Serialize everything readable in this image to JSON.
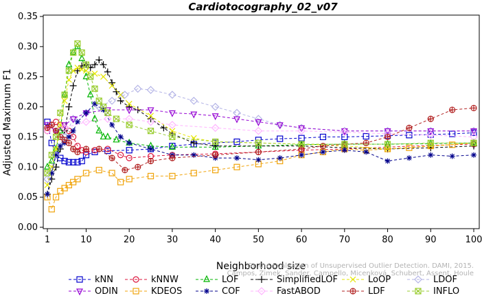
{
  "chart_data": {
    "type": "line",
    "title": "Cardiotocography_02_v07",
    "xlabel": "Neighborhood size",
    "ylabel": "Adjusted Maximum F1",
    "xlim": [
      1,
      100
    ],
    "ylim": [
      0,
      0.35
    ],
    "x_ticks": [
      1,
      10,
      20,
      30,
      40,
      50,
      60,
      70,
      80,
      90,
      100
    ],
    "y_ticks": [
      "0.00",
      "0.05",
      "0.10",
      "0.15",
      "0.20",
      "0.25",
      "0.30",
      "0.35"
    ],
    "grid": false,
    "legend_position": "bottom",
    "series": [
      {
        "name": "kNN",
        "color": "#0000cd",
        "marker": "square",
        "points": [
          [
            1,
            0.175
          ],
          [
            2,
            0.14
          ],
          [
            3,
            0.12
          ],
          [
            4,
            0.115
          ],
          [
            5,
            0.11
          ],
          [
            6,
            0.108
          ],
          [
            7,
            0.108
          ],
          [
            8,
            0.108
          ],
          [
            9,
            0.11
          ],
          [
            10,
            0.12
          ],
          [
            12,
            0.125
          ],
          [
            15,
            0.127
          ],
          [
            20,
            0.128
          ],
          [
            25,
            0.13
          ],
          [
            30,
            0.135
          ],
          [
            35,
            0.138
          ],
          [
            40,
            0.14
          ],
          [
            45,
            0.142
          ],
          [
            50,
            0.145
          ],
          [
            55,
            0.147
          ],
          [
            60,
            0.148
          ],
          [
            65,
            0.15
          ],
          [
            70,
            0.15
          ],
          [
            75,
            0.151
          ],
          [
            80,
            0.152
          ],
          [
            85,
            0.153
          ],
          [
            90,
            0.154
          ],
          [
            95,
            0.155
          ],
          [
            100,
            0.157
          ]
        ]
      },
      {
        "name": "kNNW",
        "color": "#dc143c",
        "marker": "circle",
        "points": [
          [
            1,
            0.16
          ],
          [
            2,
            0.17
          ],
          [
            3,
            0.175
          ],
          [
            4,
            0.17
          ],
          [
            5,
            0.165
          ],
          [
            6,
            0.16
          ],
          [
            7,
            0.15
          ],
          [
            8,
            0.135
          ],
          [
            9,
            0.128
          ],
          [
            10,
            0.125
          ],
          [
            12,
            0.128
          ],
          [
            15,
            0.13
          ],
          [
            18,
            0.12
          ],
          [
            20,
            0.115
          ],
          [
            25,
            0.118
          ],
          [
            30,
            0.12
          ],
          [
            40,
            0.122
          ],
          [
            50,
            0.125
          ],
          [
            60,
            0.128
          ],
          [
            70,
            0.13
          ],
          [
            80,
            0.133
          ],
          [
            90,
            0.136
          ],
          [
            100,
            0.138
          ]
        ]
      },
      {
        "name": "LOF",
        "color": "#00b400",
        "marker": "triangle-up",
        "points": [
          [
            1,
            0.1
          ],
          [
            2,
            0.11
          ],
          [
            3,
            0.13
          ],
          [
            4,
            0.16
          ],
          [
            5,
            0.22
          ],
          [
            6,
            0.27
          ],
          [
            7,
            0.29
          ],
          [
            8,
            0.3
          ],
          [
            9,
            0.28
          ],
          [
            10,
            0.25
          ],
          [
            11,
            0.22
          ],
          [
            12,
            0.18
          ],
          [
            13,
            0.16
          ],
          [
            14,
            0.15
          ],
          [
            15,
            0.15
          ],
          [
            17,
            0.145
          ],
          [
            20,
            0.14
          ],
          [
            25,
            0.135
          ],
          [
            30,
            0.133
          ],
          [
            40,
            0.133
          ],
          [
            50,
            0.135
          ],
          [
            60,
            0.137
          ],
          [
            70,
            0.138
          ],
          [
            80,
            0.138
          ],
          [
            90,
            0.139
          ],
          [
            100,
            0.14
          ]
        ]
      },
      {
        "name": "SimplifiedLOF",
        "color": "#000000",
        "marker": "plus",
        "points": [
          [
            1,
            0.055
          ],
          [
            2,
            0.08
          ],
          [
            3,
            0.1
          ],
          [
            4,
            0.13
          ],
          [
            5,
            0.16
          ],
          [
            6,
            0.2
          ],
          [
            7,
            0.235
          ],
          [
            8,
            0.26
          ],
          [
            9,
            0.268
          ],
          [
            10,
            0.27
          ],
          [
            11,
            0.265
          ],
          [
            12,
            0.27
          ],
          [
            13,
            0.278
          ],
          [
            14,
            0.27
          ],
          [
            15,
            0.258
          ],
          [
            16,
            0.24
          ],
          [
            17,
            0.225
          ],
          [
            18,
            0.21
          ],
          [
            20,
            0.2
          ],
          [
            22,
            0.195
          ],
          [
            25,
            0.18
          ],
          [
            28,
            0.165
          ],
          [
            30,
            0.155
          ],
          [
            35,
            0.14
          ],
          [
            40,
            0.135
          ],
          [
            50,
            0.135
          ],
          [
            60,
            0.135
          ],
          [
            70,
            0.132
          ],
          [
            80,
            0.13
          ],
          [
            90,
            0.132
          ],
          [
            100,
            0.135
          ]
        ]
      },
      {
        "name": "LoOP",
        "color": "#e6e600",
        "marker": "x",
        "points": [
          [
            1,
            0.07
          ],
          [
            2,
            0.1
          ],
          [
            3,
            0.13
          ],
          [
            4,
            0.17
          ],
          [
            5,
            0.21
          ],
          [
            6,
            0.245
          ],
          [
            7,
            0.26
          ],
          [
            8,
            0.265
          ],
          [
            9,
            0.262
          ],
          [
            10,
            0.26
          ],
          [
            12,
            0.255
          ],
          [
            14,
            0.25
          ],
          [
            16,
            0.235
          ],
          [
            18,
            0.22
          ],
          [
            20,
            0.205
          ],
          [
            25,
            0.185
          ],
          [
            30,
            0.16
          ],
          [
            35,
            0.148
          ],
          [
            40,
            0.142
          ],
          [
            50,
            0.14
          ],
          [
            60,
            0.138
          ],
          [
            70,
            0.135
          ],
          [
            80,
            0.13
          ],
          [
            90,
            0.135
          ],
          [
            100,
            0.14
          ]
        ]
      },
      {
        "name": "LDOF",
        "color": "#b3b3e6",
        "marker": "diamond",
        "points": [
          [
            1,
            0.08
          ],
          [
            3,
            0.12
          ],
          [
            5,
            0.15
          ],
          [
            7,
            0.18
          ],
          [
            10,
            0.19
          ],
          [
            13,
            0.2
          ],
          [
            16,
            0.21
          ],
          [
            19,
            0.22
          ],
          [
            22,
            0.23
          ],
          [
            25,
            0.228
          ],
          [
            30,
            0.22
          ],
          [
            35,
            0.21
          ],
          [
            40,
            0.2
          ],
          [
            45,
            0.19
          ],
          [
            50,
            0.18
          ],
          [
            55,
            0.17
          ],
          [
            60,
            0.165
          ],
          [
            70,
            0.16
          ],
          [
            80,
            0.16
          ],
          [
            90,
            0.16
          ],
          [
            100,
            0.16
          ]
        ]
      },
      {
        "name": "ODIN",
        "color": "#9400d3",
        "marker": "triangle-down",
        "points": [
          [
            1,
            0.17
          ],
          [
            3,
            0.16
          ],
          [
            5,
            0.17
          ],
          [
            7,
            0.18
          ],
          [
            10,
            0.19
          ],
          [
            15,
            0.195
          ],
          [
            20,
            0.195
          ],
          [
            25,
            0.195
          ],
          [
            30,
            0.19
          ],
          [
            35,
            0.188
          ],
          [
            40,
            0.185
          ],
          [
            45,
            0.18
          ],
          [
            50,
            0.175
          ],
          [
            55,
            0.17
          ],
          [
            60,
            0.165
          ],
          [
            70,
            0.16
          ],
          [
            80,
            0.16
          ],
          [
            90,
            0.16
          ],
          [
            100,
            0.16
          ]
        ]
      },
      {
        "name": "KDEOS",
        "color": "#f0a30a",
        "marker": "square",
        "points": [
          [
            1,
            0.05
          ],
          [
            2,
            0.03
          ],
          [
            3,
            0.05
          ],
          [
            4,
            0.06
          ],
          [
            5,
            0.065
          ],
          [
            6,
            0.07
          ],
          [
            7,
            0.075
          ],
          [
            8,
            0.08
          ],
          [
            10,
            0.09
          ],
          [
            13,
            0.095
          ],
          [
            16,
            0.09
          ],
          [
            18,
            0.075
          ],
          [
            20,
            0.08
          ],
          [
            25,
            0.085
          ],
          [
            30,
            0.085
          ],
          [
            35,
            0.09
          ],
          [
            40,
            0.095
          ],
          [
            45,
            0.1
          ],
          [
            50,
            0.105
          ],
          [
            55,
            0.11
          ],
          [
            60,
            0.12
          ],
          [
            65,
            0.125
          ],
          [
            70,
            0.13
          ],
          [
            75,
            0.128
          ],
          [
            80,
            0.13
          ],
          [
            85,
            0.132
          ],
          [
            90,
            0.135
          ],
          [
            95,
            0.137
          ],
          [
            100,
            0.14
          ]
        ]
      },
      {
        "name": "COF",
        "color": "#00008b",
        "marker": "asterisk",
        "points": [
          [
            1,
            0.055
          ],
          [
            2,
            0.09
          ],
          [
            3,
            0.12
          ],
          [
            4,
            0.135
          ],
          [
            5,
            0.14
          ],
          [
            6,
            0.15
          ],
          [
            7,
            0.16
          ],
          [
            8,
            0.175
          ],
          [
            10,
            0.19
          ],
          [
            12,
            0.205
          ],
          [
            14,
            0.195
          ],
          [
            16,
            0.17
          ],
          [
            18,
            0.15
          ],
          [
            20,
            0.14
          ],
          [
            25,
            0.13
          ],
          [
            30,
            0.12
          ],
          [
            35,
            0.12
          ],
          [
            40,
            0.115
          ],
          [
            45,
            0.115
          ],
          [
            50,
            0.112
          ],
          [
            55,
            0.115
          ],
          [
            60,
            0.12
          ],
          [
            65,
            0.125
          ],
          [
            70,
            0.128
          ],
          [
            75,
            0.125
          ],
          [
            80,
            0.11
          ],
          [
            85,
            0.115
          ],
          [
            90,
            0.12
          ],
          [
            95,
            0.118
          ],
          [
            100,
            0.12
          ]
        ]
      },
      {
        "name": "FastABOD",
        "color": "#ffb3ff",
        "marker": "diamond",
        "points": [
          [
            1,
            0.16
          ],
          [
            5,
            0.165
          ],
          [
            10,
            0.175
          ],
          [
            15,
            0.18
          ],
          [
            20,
            0.18
          ],
          [
            25,
            0.175
          ],
          [
            30,
            0.17
          ],
          [
            40,
            0.165
          ],
          [
            50,
            0.16
          ],
          [
            60,
            0.16
          ],
          [
            70,
            0.158
          ],
          [
            80,
            0.155
          ],
          [
            90,
            0.153
          ],
          [
            100,
            0.15
          ]
        ]
      },
      {
        "name": "LDF",
        "color": "#b22222",
        "marker": "circle-plus",
        "points": [
          [
            1,
            0.165
          ],
          [
            2,
            0.17
          ],
          [
            3,
            0.16
          ],
          [
            4,
            0.15
          ],
          [
            5,
            0.145
          ],
          [
            6,
            0.14
          ],
          [
            7,
            0.13
          ],
          [
            8,
            0.125
          ],
          [
            10,
            0.13
          ],
          [
            13,
            0.13
          ],
          [
            16,
            0.115
          ],
          [
            19,
            0.095
          ],
          [
            22,
            0.1
          ],
          [
            25,
            0.11
          ],
          [
            30,
            0.115
          ],
          [
            40,
            0.12
          ],
          [
            50,
            0.125
          ],
          [
            60,
            0.13
          ],
          [
            65,
            0.135
          ],
          [
            70,
            0.138
          ],
          [
            75,
            0.14
          ],
          [
            80,
            0.15
          ],
          [
            85,
            0.165
          ],
          [
            90,
            0.18
          ],
          [
            95,
            0.195
          ],
          [
            100,
            0.198
          ]
        ]
      },
      {
        "name": "INFLO",
        "color": "#9acd32",
        "marker": "hourglass",
        "points": [
          [
            1,
            0.09
          ],
          [
            2,
            0.12
          ],
          [
            3,
            0.15
          ],
          [
            4,
            0.19
          ],
          [
            5,
            0.22
          ],
          [
            6,
            0.26
          ],
          [
            7,
            0.29
          ],
          [
            8,
            0.305
          ],
          [
            9,
            0.29
          ],
          [
            10,
            0.27
          ],
          [
            11,
            0.25
          ],
          [
            12,
            0.23
          ],
          [
            13,
            0.21
          ],
          [
            14,
            0.2
          ],
          [
            15,
            0.19
          ],
          [
            17,
            0.18
          ],
          [
            20,
            0.17
          ],
          [
            25,
            0.16
          ],
          [
            30,
            0.15
          ],
          [
            40,
            0.142
          ],
          [
            50,
            0.14
          ],
          [
            60,
            0.138
          ],
          [
            70,
            0.138
          ],
          [
            80,
            0.138
          ],
          [
            90,
            0.14
          ],
          [
            100,
            0.14
          ]
        ]
      }
    ]
  },
  "watermark": {
    "line1": "Campos, Zimek, Sander, Campello, Micenková, Schubert, Assent, Houle",
    "line2": "On the Evaluation of Unsupervised Outlier Detection. DAMI, 2015."
  }
}
